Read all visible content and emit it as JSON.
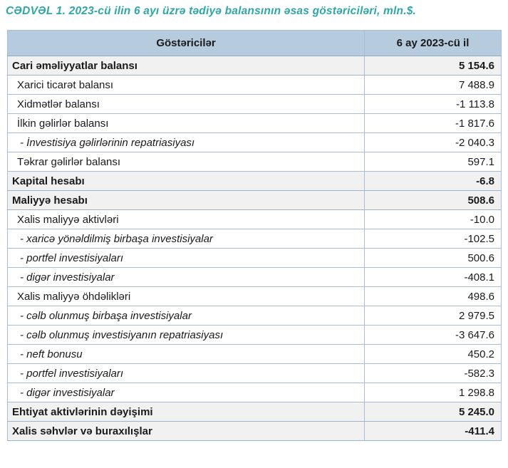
{
  "title": "CƏDVƏL 1. 2023-cü ilin 6 ayı üzrə tədiyə balansının əsas göstəriciləri, mln.$.",
  "colors": {
    "title_text": "#2fa7a9",
    "header_bg": "#b6cbdd",
    "section_bg": "#f1f1f1",
    "border": "#a9bdd1",
    "body_text": "#1a1a1a"
  },
  "table": {
    "headers": {
      "indicator": "Göstəricilər",
      "period": "6 ay 2023-cü il"
    },
    "rows": [
      {
        "style": "section",
        "label": "Cari əməliyyatlar balansı",
        "value": "5 154.6"
      },
      {
        "style": "item",
        "label": "Xarici ticarət balansı",
        "value": "7 488.9"
      },
      {
        "style": "item",
        "label": "Xidmətlər balansı",
        "value": "-1 113.8"
      },
      {
        "style": "item",
        "label": "İlkin gəlirlər balansı",
        "value": "-1 817.6"
      },
      {
        "style": "subitem",
        "label": "- İnvestisiya gəlirlərinin repatriasiyası",
        "value": "-2 040.3"
      },
      {
        "style": "item",
        "label": "Təkrar gəlirlər balansı",
        "value": "597.1"
      },
      {
        "style": "section",
        "label": "Kapital hesabı",
        "value": "-6.8"
      },
      {
        "style": "section",
        "label": "Maliyyə hesabı",
        "value": "508.6"
      },
      {
        "style": "item",
        "label": "Xalis maliyyə aktivləri",
        "value": "-10.0"
      },
      {
        "style": "subitem",
        "label": "- xaricə yönəldilmiş birbaşa investisiyalar",
        "value": "-102.5"
      },
      {
        "style": "subitem",
        "label": "- portfel investisiyaları",
        "value": "500.6"
      },
      {
        "style": "subitem",
        "label": "- digər investisiyalar",
        "value": "-408.1"
      },
      {
        "style": "item",
        "label": "Xalis maliyyə öhdəlikləri",
        "value": "498.6"
      },
      {
        "style": "subitem",
        "label": "- cəlb olunmuş birbaşa investisiyalar",
        "value": "2 979.5"
      },
      {
        "style": "subitem",
        "label": "- cəlb olunmuş investisiyanın repatriasiyası",
        "value": "-3 647.6"
      },
      {
        "style": "subitem",
        "label": "- neft bonusu",
        "value": "450.2"
      },
      {
        "style": "subitem",
        "label": "- portfel investisiyaları",
        "value": "-582.3"
      },
      {
        "style": "subitem",
        "label": "- digər investisiyalar",
        "value": "1 298.8"
      },
      {
        "style": "section",
        "label": "Ehtiyat aktivlərinin dəyişimi",
        "value": "5 245.0"
      },
      {
        "style": "section",
        "label": "Xalis səhvlər və buraxılışlar",
        "value": "-411.4"
      }
    ]
  }
}
